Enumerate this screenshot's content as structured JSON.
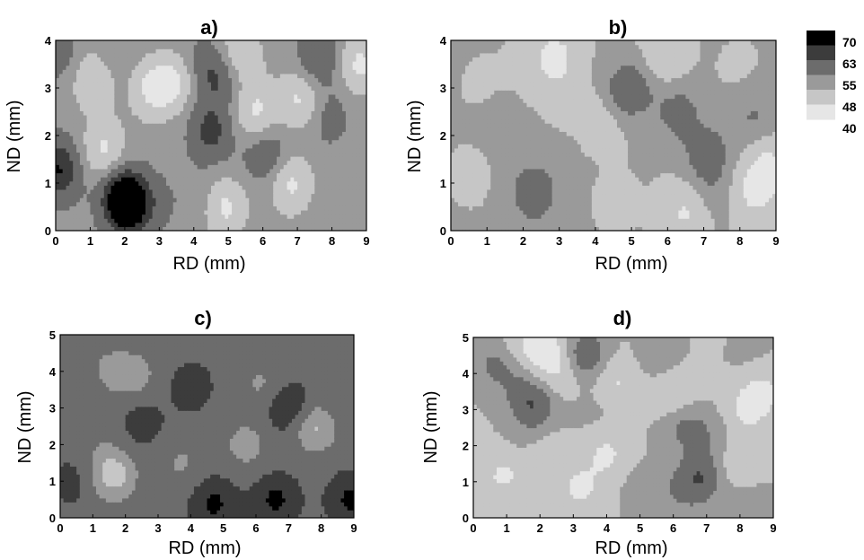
{
  "chart_data": [
    {
      "type": "heatmap",
      "title": "a)",
      "xlabel": "RD (mm)",
      "ylabel": "ND (mm)",
      "xlim": [
        0,
        9
      ],
      "ylim": [
        0,
        4
      ],
      "xticks": [
        "0",
        "1",
        "2",
        "3",
        "4",
        "5",
        "6",
        "7",
        "8",
        "9"
      ],
      "yticks": [
        "0",
        "1",
        "2",
        "3",
        "4"
      ],
      "contour_levels": [
        40,
        48,
        55,
        63,
        70
      ],
      "grid": false,
      "features": [
        {
          "x": 0.1,
          "y": 1.3,
          "value": 68
        },
        {
          "x": 0.15,
          "y": 3.7,
          "value": 58
        },
        {
          "x": 1.1,
          "y": 3.2,
          "value": 40
        },
        {
          "x": 1.6,
          "y": 3.6,
          "value": 56
        },
        {
          "x": 1.4,
          "y": 1.7,
          "value": 40
        },
        {
          "x": 1.9,
          "y": 0.8,
          "value": 66
        },
        {
          "x": 2.1,
          "y": 0.5,
          "value": 70
        },
        {
          "x": 2.8,
          "y": 0.6,
          "value": 56
        },
        {
          "x": 2.2,
          "y": 2.0,
          "value": 52
        },
        {
          "x": 2.8,
          "y": 1.8,
          "value": 52
        },
        {
          "x": 2.8,
          "y": 3.0,
          "value": 40
        },
        {
          "x": 3.5,
          "y": 3.2,
          "value": 40
        },
        {
          "x": 3.4,
          "y": 3.8,
          "value": 54
        },
        {
          "x": 4.5,
          "y": 2.1,
          "value": 64
        },
        {
          "x": 4.2,
          "y": 3.4,
          "value": 58
        },
        {
          "x": 4.8,
          "y": 3.3,
          "value": 62
        },
        {
          "x": 4.1,
          "y": 0.7,
          "value": 55
        },
        {
          "x": 4.9,
          "y": 0.5,
          "value": 40
        },
        {
          "x": 5.8,
          "y": 2.5,
          "value": 40
        },
        {
          "x": 6.1,
          "y": 1.6,
          "value": 62
        },
        {
          "x": 6.8,
          "y": 1.0,
          "value": 40
        },
        {
          "x": 7.6,
          "y": 3.6,
          "value": 62
        },
        {
          "x": 7.9,
          "y": 2.4,
          "value": 58
        },
        {
          "x": 8.2,
          "y": 1.7,
          "value": 52
        },
        {
          "x": 8.5,
          "y": 0.5,
          "value": 54
        },
        {
          "x": 7.1,
          "y": 2.8,
          "value": 40
        },
        {
          "x": 8.8,
          "y": 3.5,
          "value": 40
        },
        {
          "x": 5.3,
          "y": 3.7,
          "value": 40
        }
      ]
    },
    {
      "type": "heatmap",
      "title": "b)",
      "xlabel": "RD (mm)",
      "ylabel": "ND (mm)",
      "xlim": [
        0,
        9
      ],
      "ylim": [
        0,
        4
      ],
      "xticks": [
        "0",
        "1",
        "2",
        "3",
        "4",
        "5",
        "6",
        "7",
        "8",
        "9"
      ],
      "yticks": [
        "0",
        "1",
        "2",
        "3",
        "4"
      ],
      "contour_levels": [
        40,
        48,
        55,
        63,
        70
      ],
      "grid": false,
      "features": [
        {
          "x": 1.0,
          "y": 3.0,
          "value": 47
        },
        {
          "x": 1.4,
          "y": 2.3,
          "value": 51
        },
        {
          "x": 0.6,
          "y": 1.2,
          "value": 47
        },
        {
          "x": 2.3,
          "y": 0.8,
          "value": 60
        },
        {
          "x": 2.3,
          "y": 3.4,
          "value": 46
        },
        {
          "x": 3.2,
          "y": 3.0,
          "value": 46
        },
        {
          "x": 2.9,
          "y": 3.7,
          "value": 40
        },
        {
          "x": 4.4,
          "y": 2.5,
          "value": 40
        },
        {
          "x": 4.7,
          "y": 2.8,
          "value": 61
        },
        {
          "x": 5.3,
          "y": 3.2,
          "value": 55
        },
        {
          "x": 6.3,
          "y": 2.5,
          "value": 57
        },
        {
          "x": 7.1,
          "y": 1.6,
          "value": 58
        },
        {
          "x": 7.2,
          "y": 0.8,
          "value": 52
        },
        {
          "x": 8.4,
          "y": 2.4,
          "value": 55
        },
        {
          "x": 8.0,
          "y": 3.3,
          "value": 47
        },
        {
          "x": 8.4,
          "y": 0.8,
          "value": 40
        },
        {
          "x": 5.8,
          "y": 3.6,
          "value": 40
        },
        {
          "x": 4.6,
          "y": 0.6,
          "value": 47
        },
        {
          "x": 6.5,
          "y": 0.4,
          "value": 40
        },
        {
          "x": 8.8,
          "y": 1.4,
          "value": 40
        }
      ]
    },
    {
      "type": "heatmap",
      "title": "c)",
      "xlabel": "RD (mm)",
      "ylabel": "ND (mm)",
      "xlim": [
        0,
        9
      ],
      "ylim": [
        0,
        5
      ],
      "xticks": [
        "0",
        "1",
        "2",
        "3",
        "4",
        "5",
        "6",
        "7",
        "8",
        "9"
      ],
      "yticks": [
        "0",
        "1",
        "2",
        "3",
        "4",
        "5"
      ],
      "contour_levels": [
        40,
        48,
        55,
        63,
        70
      ],
      "grid": false,
      "features": [
        {
          "x": 0.4,
          "y": 4.2,
          "value": 62
        },
        {
          "x": 0.8,
          "y": 3.5,
          "value": 63
        },
        {
          "x": 1.4,
          "y": 4.0,
          "value": 54
        },
        {
          "x": 2.3,
          "y": 3.9,
          "value": 53
        },
        {
          "x": 4.0,
          "y": 3.6,
          "value": 66
        },
        {
          "x": 6.2,
          "y": 3.7,
          "value": 54
        },
        {
          "x": 7.0,
          "y": 3.0,
          "value": 70
        },
        {
          "x": 7.8,
          "y": 2.5,
          "value": 48
        },
        {
          "x": 8.6,
          "y": 3.3,
          "value": 63
        },
        {
          "x": 2.5,
          "y": 2.6,
          "value": 66
        },
        {
          "x": 1.6,
          "y": 1.2,
          "value": 46
        },
        {
          "x": 1.2,
          "y": 2.2,
          "value": 58
        },
        {
          "x": 0.4,
          "y": 1.0,
          "value": 65
        },
        {
          "x": 4.7,
          "y": 0.4,
          "value": 70
        },
        {
          "x": 6.6,
          "y": 0.5,
          "value": 70
        },
        {
          "x": 8.9,
          "y": 0.5,
          "value": 70
        },
        {
          "x": 3.7,
          "y": 1.5,
          "value": 55
        },
        {
          "x": 5.7,
          "y": 2.0,
          "value": 53
        },
        {
          "x": 3.6,
          "y": 4.8,
          "value": 60
        },
        {
          "x": 6.5,
          "y": 4.6,
          "value": 63
        },
        {
          "x": 8.2,
          "y": 4.4,
          "value": 60
        },
        {
          "x": 2.0,
          "y": 0.5,
          "value": 60
        }
      ]
    },
    {
      "type": "heatmap",
      "title": "d)",
      "xlabel": "RD (mm)",
      "ylabel": "ND (mm)",
      "xlim": [
        0,
        9
      ],
      "ylim": [
        0,
        5
      ],
      "xticks": [
        "0",
        "1",
        "2",
        "3",
        "4",
        "5",
        "6",
        "7",
        "8",
        "9"
      ],
      "yticks": [
        "0",
        "1",
        "2",
        "3",
        "4",
        "5"
      ],
      "contour_levels": [
        40,
        48,
        55,
        63,
        70
      ],
      "grid": false,
      "features": [
        {
          "x": 0.6,
          "y": 4.3,
          "value": 54
        },
        {
          "x": 1.2,
          "y": 4.0,
          "value": 52
        },
        {
          "x": 1.6,
          "y": 4.7,
          "value": 40
        },
        {
          "x": 2.4,
          "y": 4.7,
          "value": 40
        },
        {
          "x": 3.3,
          "y": 4.5,
          "value": 62
        },
        {
          "x": 2.6,
          "y": 4.0,
          "value": 40
        },
        {
          "x": 1.8,
          "y": 3.2,
          "value": 61
        },
        {
          "x": 3.6,
          "y": 3.0,
          "value": 50
        },
        {
          "x": 5.5,
          "y": 4.4,
          "value": 52
        },
        {
          "x": 6.0,
          "y": 3.4,
          "value": 40
        },
        {
          "x": 6.3,
          "y": 2.6,
          "value": 56
        },
        {
          "x": 8.2,
          "y": 3.0,
          "value": 40
        },
        {
          "x": 8.4,
          "y": 4.3,
          "value": 50
        },
        {
          "x": 8.7,
          "y": 3.6,
          "value": 40
        },
        {
          "x": 0.9,
          "y": 1.2,
          "value": 40
        },
        {
          "x": 1.7,
          "y": 2.0,
          "value": 52
        },
        {
          "x": 2.1,
          "y": 1.7,
          "value": 40
        },
        {
          "x": 4.0,
          "y": 1.8,
          "value": 40
        },
        {
          "x": 6.9,
          "y": 1.2,
          "value": 58
        },
        {
          "x": 6.4,
          "y": 0.8,
          "value": 54
        },
        {
          "x": 8.0,
          "y": 1.5,
          "value": 40
        },
        {
          "x": 3.2,
          "y": 0.8,
          "value": 40
        },
        {
          "x": 5.2,
          "y": 0.8,
          "value": 52
        },
        {
          "x": 8.3,
          "y": 0.3,
          "value": 54
        },
        {
          "x": 7.2,
          "y": 2.3,
          "value": 52
        },
        {
          "x": 4.3,
          "y": 3.8,
          "value": 40
        }
      ]
    }
  ],
  "colorbar": {
    "labels": [
      "70",
      "63",
      "55",
      "48",
      "40"
    ],
    "colors": [
      "#000000",
      "#3c3c3c",
      "#6c6c6c",
      "#9a9a9a",
      "#c6c6c6",
      "#e6e6e6"
    ]
  }
}
